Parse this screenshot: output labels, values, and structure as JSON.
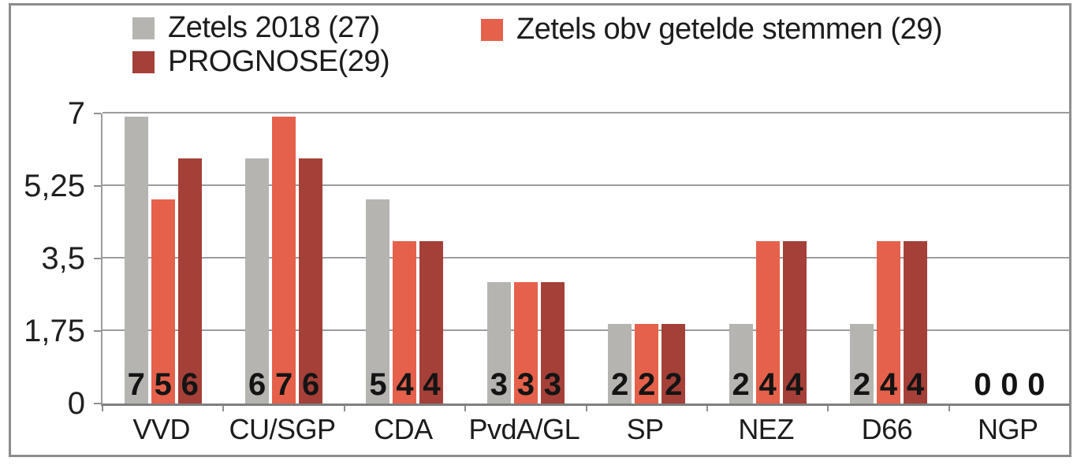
{
  "chart_data": {
    "type": "bar",
    "categories": [
      "VVD",
      "CU/SGP",
      "CDA",
      "PvdA/GL",
      "SP",
      "NEZ",
      "D66",
      "NGP"
    ],
    "series": [
      {
        "name": "Zetels 2018 (27)",
        "color": "#b5b4b1",
        "values": [
          7,
          6,
          5,
          3,
          2,
          2,
          2,
          0
        ]
      },
      {
        "name": "Zetels obv getelde stemmen (29)",
        "color": "#e5614b",
        "values": [
          5,
          7,
          4,
          3,
          2,
          4,
          4,
          0
        ]
      },
      {
        "name": "PROGNOSE(29)",
        "color": "#a54038",
        "values": [
          6,
          6,
          4,
          3,
          2,
          4,
          4,
          0
        ]
      }
    ],
    "y_tick_labels": [
      "7",
      "5,25",
      "3,5",
      "1,75",
      "0"
    ],
    "ylim": [
      0,
      7
    ],
    "grid": "horizontal",
    "legend_position": "top",
    "value_labels_position": "inside-bottom",
    "title": "",
    "xlabel": "",
    "ylabel": ""
  }
}
